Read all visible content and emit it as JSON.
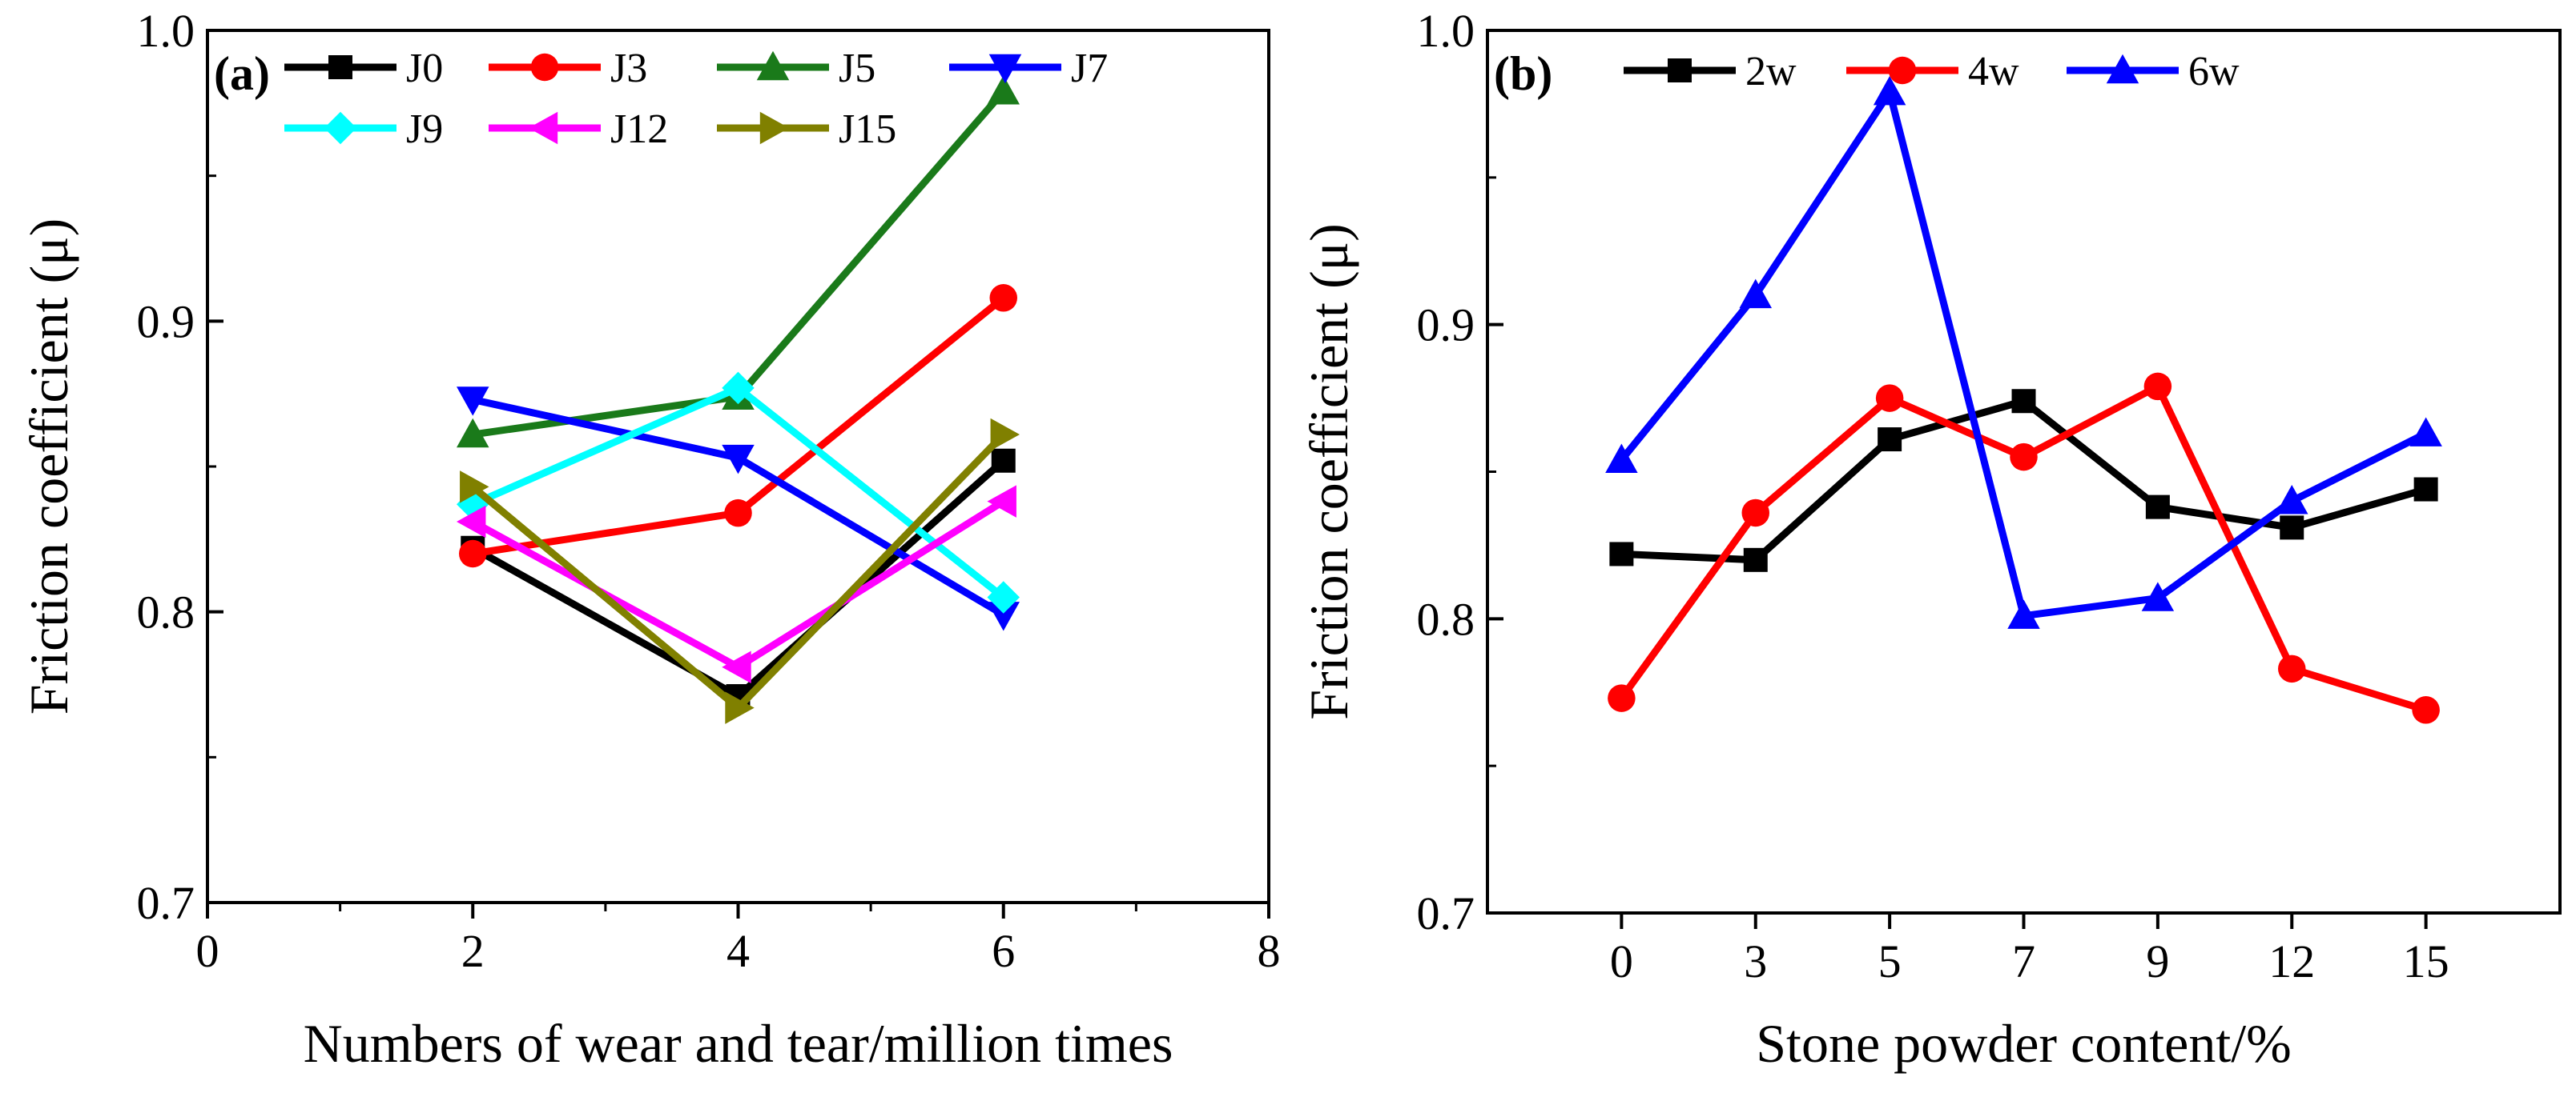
{
  "chart_data": [
    {
      "type": "line",
      "panel_label": "(a)",
      "xlabel": "Numbers of wear and tear/million times",
      "ylabel": "Friction coefficient (μ)",
      "xlim": [
        0,
        8
      ],
      "ylim": [
        0.7,
        1.0
      ],
      "xticks": [
        0,
        2,
        4,
        6,
        8
      ],
      "yticks": [
        0.7,
        0.8,
        0.9,
        1.0
      ],
      "xtick_labels": [
        "0",
        "2",
        "4",
        "6",
        "8"
      ],
      "ytick_labels": [
        "0.7",
        "0.8",
        "0.9",
        "1.0"
      ],
      "x": [
        2,
        4,
        6
      ],
      "legend_position": "top",
      "series": [
        {
          "name": "J0",
          "values": [
            0.822,
            0.771,
            0.852
          ],
          "color": "#000000",
          "marker": "square"
        },
        {
          "name": "J3",
          "values": [
            0.82,
            0.834,
            0.908
          ],
          "color": "#ff0000",
          "marker": "circle"
        },
        {
          "name": "J5",
          "values": [
            0.861,
            0.874,
            0.979
          ],
          "color": "#1a7a1a",
          "marker": "triangle-up"
        },
        {
          "name": "J7",
          "values": [
            0.873,
            0.853,
            0.799
          ],
          "color": "#0000ff",
          "marker": "triangle-down"
        },
        {
          "name": "J9",
          "values": [
            0.837,
            0.877,
            0.805
          ],
          "color": "#00ffff",
          "marker": "diamond"
        },
        {
          "name": "J12",
          "values": [
            0.831,
            0.781,
            0.838
          ],
          "color": "#ff00ff",
          "marker": "triangle-left"
        },
        {
          "name": "J15",
          "values": [
            0.843,
            0.767,
            0.861
          ],
          "color": "#808000",
          "marker": "triangle-right"
        }
      ]
    },
    {
      "type": "line",
      "panel_label": "(b)",
      "xlabel": "Stone powder content/%",
      "ylabel": "Friction coefficient (μ)",
      "ylim": [
        0.7,
        1.0
      ],
      "yticks": [
        0.7,
        0.8,
        0.9,
        1.0
      ],
      "ytick_labels": [
        "0.7",
        "0.8",
        "0.9",
        "1.0"
      ],
      "categories": [
        "0",
        "3",
        "5",
        "7",
        "9",
        "12",
        "15"
      ],
      "legend_position": "top-left",
      "series": [
        {
          "name": "2w",
          "values": [
            0.822,
            0.82,
            0.861,
            0.874,
            0.838,
            0.831,
            0.844
          ],
          "color": "#000000",
          "marker": "square"
        },
        {
          "name": "4w",
          "values": [
            0.773,
            0.836,
            0.875,
            0.855,
            0.879,
            0.783,
            0.769
          ],
          "color": "#ff0000",
          "marker": "circle"
        },
        {
          "name": "6w",
          "values": [
            0.854,
            0.91,
            0.979,
            0.801,
            0.807,
            0.84,
            0.863
          ],
          "color": "#0000ff",
          "marker": "triangle-up"
        }
      ]
    }
  ]
}
